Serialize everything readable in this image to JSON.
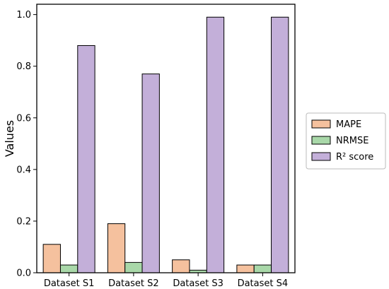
{
  "chart_data": {
    "type": "bar",
    "title": "",
    "xlabel": "",
    "ylabel": "Values",
    "ylim": [
      0,
      1.04
    ],
    "yticks": [
      0.0,
      0.2,
      0.4,
      0.6,
      0.8,
      1.0
    ],
    "ytick_labels": [
      "0.0",
      "0.2",
      "0.4",
      "0.6",
      "0.8",
      "1.0"
    ],
    "categories": [
      "Dataset S1",
      "Dataset S2",
      "Dataset S3",
      "Dataset S4"
    ],
    "series": [
      {
        "name": "MAPE",
        "color": "#f5c19e",
        "values": [
          0.11,
          0.19,
          0.05,
          0.03
        ]
      },
      {
        "name": "NRMSE",
        "color": "#a9d8a9",
        "values": [
          0.03,
          0.04,
          0.01,
          0.03
        ]
      },
      {
        "name": "R² score",
        "color": "#c3afd9",
        "values": [
          0.88,
          0.77,
          0.99,
          0.99
        ]
      }
    ],
    "grid": false,
    "legend_position": "outside-right"
  }
}
